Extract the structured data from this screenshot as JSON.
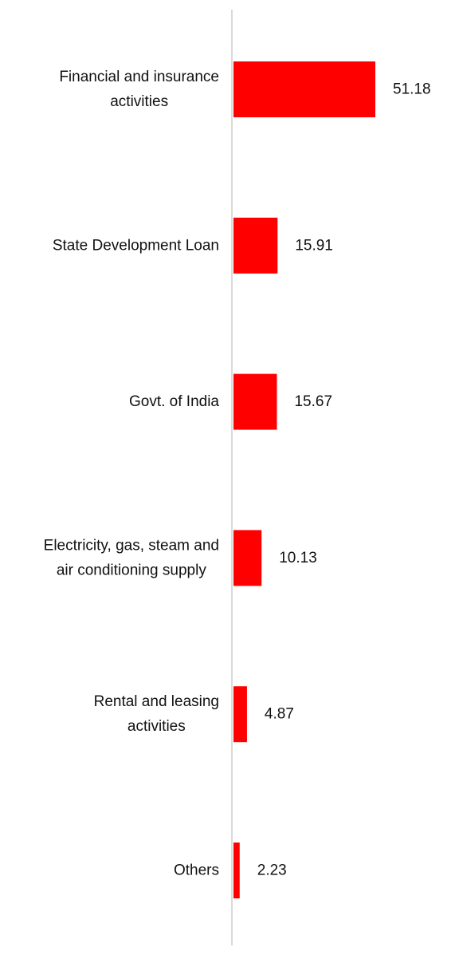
{
  "chart_data": {
    "type": "bar",
    "orientation": "horizontal",
    "categories": [
      [
        "Financial and insurance",
        "activities"
      ],
      [
        "State Development Loan"
      ],
      [
        "Govt. of India"
      ],
      [
        "Electricity, gas, steam and",
        "air conditioning supply"
      ],
      [
        "Rental and leasing",
        "activities"
      ],
      [
        "Others"
      ]
    ],
    "values": [
      51.18,
      15.91,
      15.67,
      10.13,
      4.87,
      2.23
    ],
    "value_labels": [
      "51.18",
      "15.91",
      "15.67",
      "10.13",
      "4.87",
      "2.23"
    ],
    "title": "",
    "xlabel": "",
    "ylabel": "",
    "xlim": [
      0,
      51.18
    ],
    "grid": false,
    "legend": "none",
    "bar_color": "#ff0000",
    "axis_color": "#d9d9d9"
  }
}
